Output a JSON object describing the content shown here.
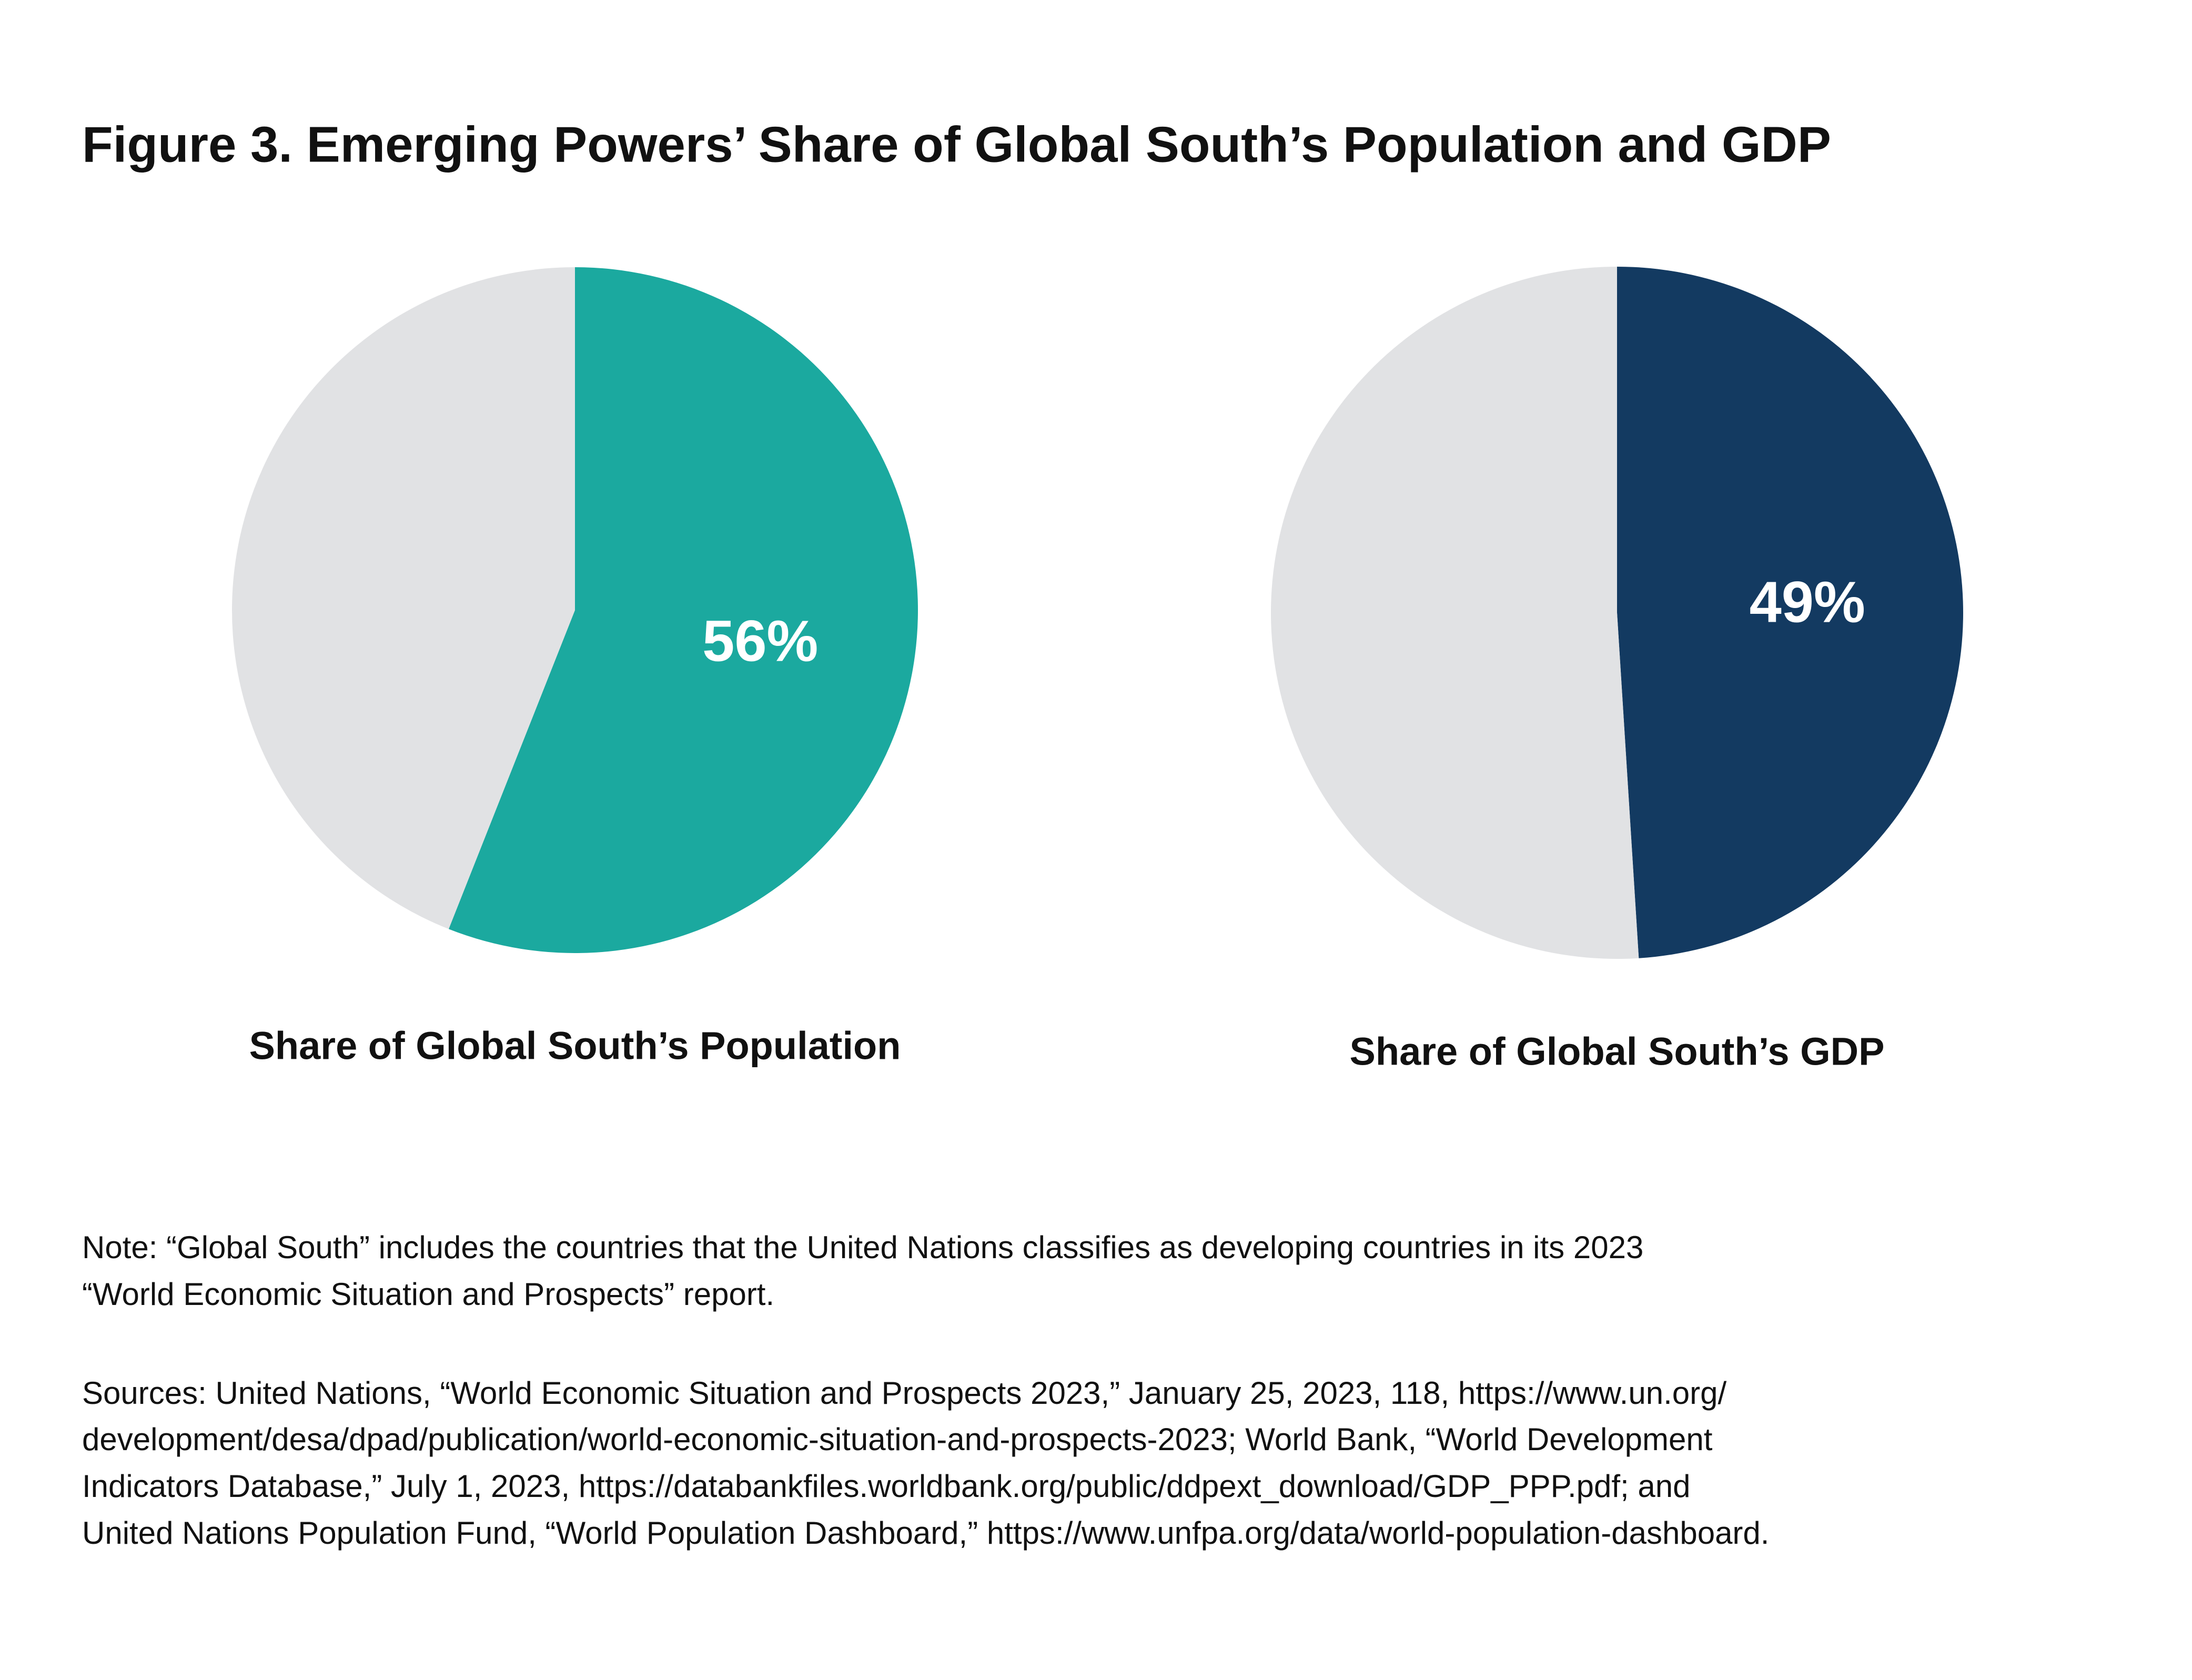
{
  "title": "Figure 3. Emerging Powers’ Share of Global South’s Population and GDP",
  "chart_data": [
    {
      "type": "pie",
      "xlabel": "Share of Global South’s Population",
      "values": [
        56,
        44
      ],
      "value_labels": [
        "56%",
        null
      ],
      "colors": [
        "#1ba99f",
        "#e1e2e4"
      ]
    },
    {
      "type": "pie",
      "xlabel": "Share of Global South’s GDP",
      "values": [
        49,
        51
      ],
      "value_labels": [
        "49%",
        null
      ],
      "colors": [
        "#133a61",
        "#e1e2e4"
      ]
    }
  ],
  "note": [
    "Note: “Global South” includes the countries that the United Nations classifies as developing countries in its 2023",
    "“World Economic Situation and Prospects” report."
  ],
  "sources": [
    "Sources: United Nations, “World Economic Situation and Prospects 2023,” January 25, 2023, 118, https://www.un.org/",
    "development/desa/dpad/publication/world-economic-situation-and-prospects-2023; World Bank, “World Development",
    "Indicators Database,” July 1, 2023, https://databankfiles.worldbank.org/public/ddpext_download/GDP_PPP.pdf; and",
    "United Nations Population Fund, “World Population Dashboard,”  https://www.unfpa.org/data/world-population-dashboard."
  ]
}
